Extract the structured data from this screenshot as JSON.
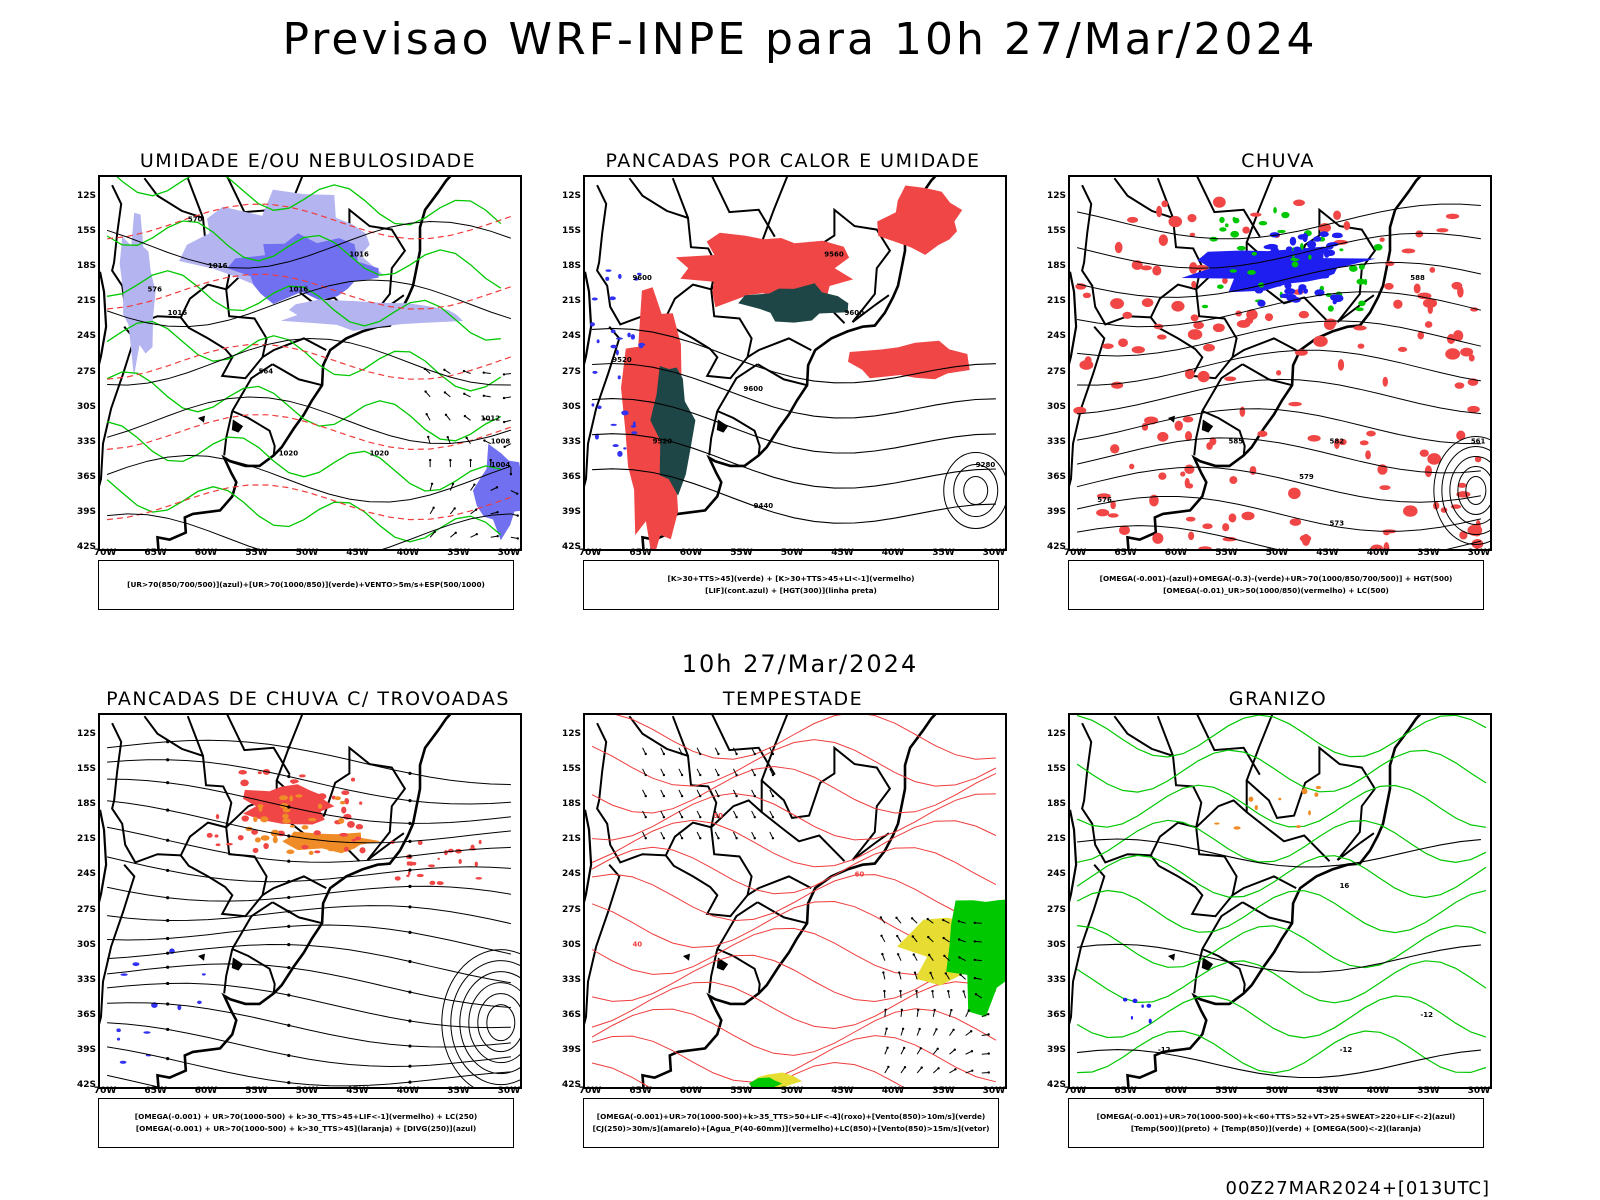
{
  "page": {
    "main_title": "Previsao WRF-INPE  para 10h 27/Mar/2024",
    "mid_title": "10h 27/Mar/2024",
    "footer": "00Z27MAR2024+[013UTC]"
  },
  "axes": {
    "lat_labels": [
      "12S",
      "15S",
      "18S",
      "21S",
      "24S",
      "27S",
      "30S",
      "33S",
      "36S",
      "39S",
      "42S"
    ],
    "lon_labels": [
      "70W",
      "65W",
      "60W",
      "55W",
      "50W",
      "45W",
      "40W",
      "35W",
      "30W"
    ]
  },
  "colors": {
    "rh_mid_blue": "#7070f0",
    "rh_mid_light": "#b4b4f0",
    "rh_low_green": "#00c800",
    "thickness_red": "#f03c3c",
    "heavy_red": "#f04646",
    "lif_blue": "#3232f0",
    "dark_teal": "#1e4646",
    "omega_blue": "#1e1ef0",
    "omega_green": "#00c800",
    "orange": "#f08c28",
    "yellow": "#e6dc32",
    "coast": "#000000"
  },
  "panels": [
    {
      "key": "umidade",
      "title": "UMIDADE E/OU NEBULOSIDADE",
      "legend": [
        "[UR>70(850/700/500)](azul)+[UR>70(1000/850)](verde)+VENTO>5m/s+ESP(500/1000)"
      ],
      "contour_labels": [
        "1016",
        "1016",
        "1016",
        "1016",
        "1020",
        "1020",
        "1012",
        "1008",
        "1004",
        "570",
        "576",
        "564"
      ]
    },
    {
      "key": "pancadas_calor",
      "title": "PANCADAS POR CALOR E UMIDADE",
      "legend": [
        "[K>30+TTS>45](verde) + [K>30+TTS>45+LI<-1](vermelho)",
        "[LIF](cont.azul) + [HGT(300)](linha preta)"
      ],
      "contour_labels": [
        "9600",
        "9600",
        "9520",
        "9520",
        "9440",
        "9280",
        "9560",
        "9600"
      ]
    },
    {
      "key": "chuva",
      "title": "CHUVA",
      "legend": [
        "[OMEGA(-0.001)-(azul)+OMEGA(-0.3)-(verde)+UR>70(1000/850/700/500)] + HGT(500)",
        "[OMEGA(-0.01)_UR>50(1000/850)(vermelho) + LC(500)"
      ],
      "contour_labels": [
        "588",
        "585",
        "582",
        "579",
        "576",
        "573",
        "561"
      ]
    },
    {
      "key": "trovoadas",
      "title": "PANCADAS DE CHUVA C/ TROVOADAS",
      "legend": [
        "[OMEGA(-0.001) + UR>70(1000-500) + k>30_TTS>45+LIF<-1](vermelho) + LC(250)",
        "[OMEGA(-0.001) + UR>70(1000-500) + k>30_TTS>45](laranja) + [DIVG(250)](azul)"
      ],
      "contour_labels": []
    },
    {
      "key": "tempestade",
      "title": "TEMPESTADE",
      "legend": [
        "[OMEGA(-0.001)+UR>70(1000-500)+k>35_TTS>50+LIF<-4](roxo)+[Vento(850)>10m/s](verde)",
        "[CJ(250)>30m/s](amarelo)+[Agua_P(40-60mm)](vermelho)+LC(850)+[Vento(850)>15m/s](vetor)"
      ],
      "contour_labels": [
        "60",
        "50",
        "40"
      ]
    },
    {
      "key": "granizo",
      "title": "GRANIZO",
      "legend": [
        "[OMEGA(-0.001)+UR>70(1000-500)+k<60+TTS>52+VT>25+SWEAT>220+LIF<-2](azul)",
        "[Temp(500)](preto) + [Temp(850)](verde) + [OMEGA(500)<-2](laranja)"
      ],
      "contour_labels": [
        "-12",
        "-12",
        "-12",
        "16"
      ]
    }
  ]
}
